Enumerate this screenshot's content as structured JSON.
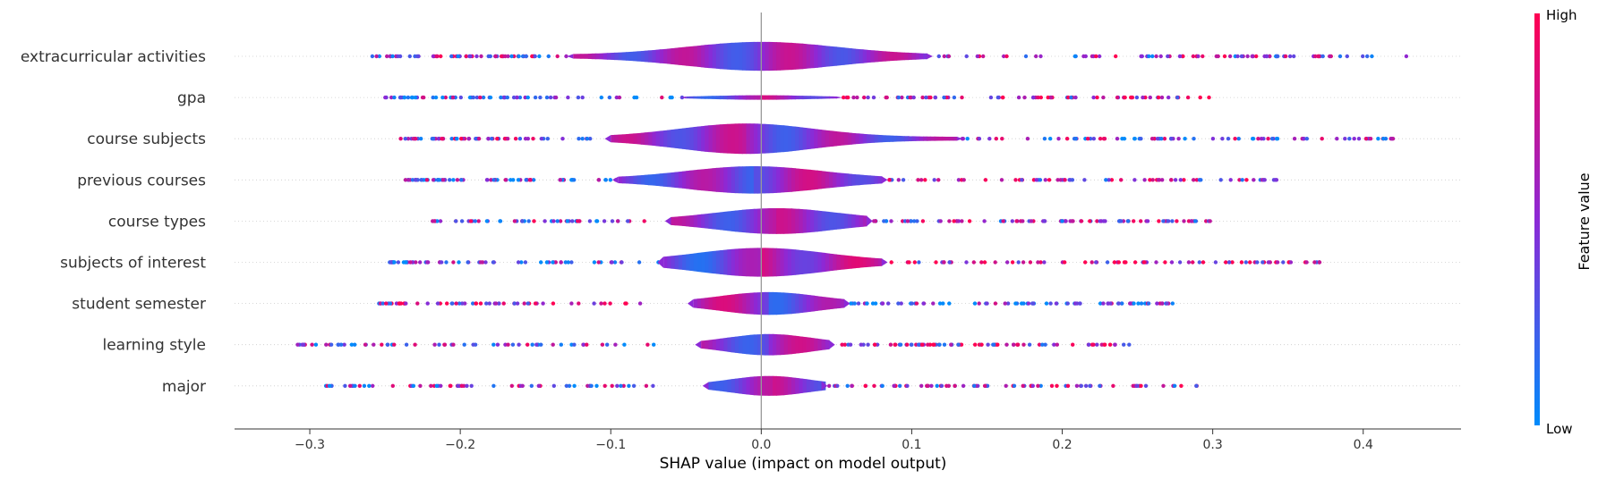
{
  "chart_data": {
    "type": "violin",
    "title": "",
    "xlabel": "SHAP value (impact on model output)",
    "xlim": [
      -0.35,
      0.465
    ],
    "x_ticks": [
      -0.3,
      -0.2,
      -0.1,
      0.0,
      0.1,
      0.2,
      0.3,
      0.4
    ],
    "x_tick_labels": [
      "−0.3",
      "−0.2",
      "−0.1",
      "0.0",
      "0.1",
      "0.2",
      "0.3",
      "0.4"
    ],
    "grid": false,
    "features": [
      {
        "name": "extracurricular activities",
        "min": -0.26,
        "max": 0.43,
        "core": [
          -0.125,
          0.11
        ],
        "peak": 0.0,
        "spread": 0.05,
        "thick": 0.95,
        "tilt": 0.1
      },
      {
        "name": "gpa",
        "min": -0.255,
        "max": 0.3,
        "core": [
          -0.05,
          0.05
        ],
        "peak": 0.0,
        "spread": 0.035,
        "thick": 0.15,
        "tilt": 0.5
      },
      {
        "name": "course subjects",
        "min": -0.24,
        "max": 0.43,
        "core": [
          -0.1,
          0.13
        ],
        "peak": -0.01,
        "spread": 0.045,
        "thick": 1.0,
        "tilt": -0.2
      },
      {
        "name": "previous courses",
        "min": -0.24,
        "max": 0.345,
        "core": [
          -0.095,
          0.08
        ],
        "peak": -0.005,
        "spread": 0.045,
        "thick": 0.9,
        "tilt": 0.4
      },
      {
        "name": "course types",
        "min": -0.22,
        "max": 0.3,
        "core": [
          -0.06,
          0.07
        ],
        "peak": 0.01,
        "spread": 0.04,
        "thick": 0.85,
        "tilt": 0.2
      },
      {
        "name": "subjects of interest",
        "min": -0.25,
        "max": 0.375,
        "core": [
          -0.065,
          0.08
        ],
        "peak": 0.0,
        "spread": 0.042,
        "thick": 0.95,
        "tilt": 0.8
      },
      {
        "name": "student semester",
        "min": -0.258,
        "max": 0.275,
        "core": [
          -0.045,
          0.055
        ],
        "peak": 0.005,
        "spread": 0.032,
        "thick": 0.75,
        "tilt": -0.6
      },
      {
        "name": "learning style",
        "min": -0.315,
        "max": 0.245,
        "core": [
          -0.04,
          0.045
        ],
        "peak": 0.005,
        "spread": 0.028,
        "thick": 0.7,
        "tilt": 0.3
      },
      {
        "name": "major",
        "min": -0.29,
        "max": 0.29,
        "core": [
          -0.035,
          0.04
        ],
        "peak": 0.005,
        "spread": 0.026,
        "thick": 0.65,
        "tilt": 0.2
      }
    ],
    "colorbar": {
      "label": "Feature value",
      "high_label": "High",
      "low_label": "Low",
      "high_color": "#ff0052",
      "mid_color": "#8c29d6",
      "low_color": "#008bfb"
    },
    "zero_line_color": "#999999"
  }
}
